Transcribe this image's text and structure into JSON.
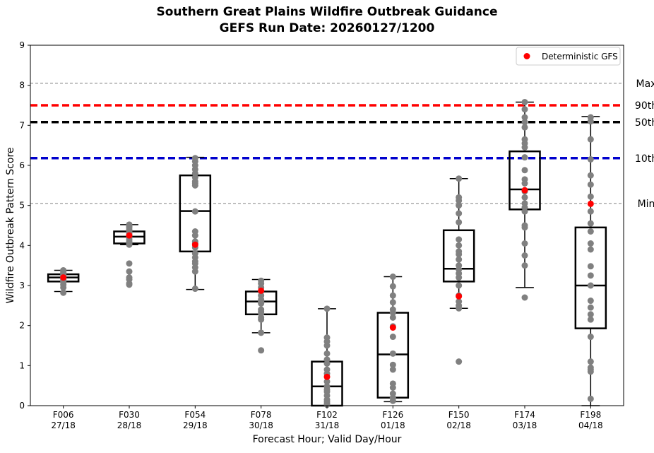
{
  "chart_data": {
    "type": "box",
    "title_line1": "Southern Great Plains Wildfire Outbreak Guidance",
    "title_line2": "GEFS Run Date: 20260127/1200",
    "xlabel": "Forecast Hour; Valid Day/Hour",
    "ylabel": "Wildfire Outbreak Pattern Score",
    "ylim": [
      0,
      9
    ],
    "yticks": [
      "0",
      "1",
      "2",
      "3",
      "4",
      "5",
      "6",
      "7",
      "8",
      "9"
    ],
    "legend": {
      "label": "Deterministic GFS",
      "location": "upper right"
    },
    "reference_lines": [
      {
        "label": "Max",
        "value": 8.05,
        "style": "thin-gray-dashed",
        "color": "#808080"
      },
      {
        "label": "90th",
        "value": 7.5,
        "style": "thick-dashed",
        "color": "#ff0000"
      },
      {
        "label": "50th",
        "value": 7.08,
        "style": "thick-dashed",
        "color": "#000000"
      },
      {
        "label": "10th",
        "value": 6.18,
        "style": "thick-dashed",
        "color": "#0000cd"
      },
      {
        "label": "Min",
        "value": 5.05,
        "style": "thin-gray-dashed",
        "color": "#808080"
      }
    ],
    "colors": {
      "members": "#808080",
      "deterministic": "#ff0000",
      "box": "#000000"
    },
    "categories": [
      {
        "hour": "F006",
        "valid": "27/18",
        "whisker_low": 2.85,
        "q1": 3.1,
        "median": 3.2,
        "q3": 3.28,
        "whisker_high": 3.38,
        "deterministic": 3.2,
        "members": [
          2.82,
          2.95,
          3.02,
          3.08,
          3.1,
          3.12,
          3.15,
          3.18,
          3.2,
          3.22,
          3.25,
          3.28,
          3.3,
          3.32,
          3.35,
          3.38
        ]
      },
      {
        "hour": "F030",
        "valid": "28/18",
        "whisker_low": 4.02,
        "q1": 4.05,
        "median": 4.22,
        "q3": 4.35,
        "whisker_high": 4.52,
        "deterministic": 4.25,
        "members": [
          3.02,
          3.05,
          3.15,
          3.2,
          3.35,
          3.55,
          4.02,
          4.05,
          4.1,
          4.15,
          4.2,
          4.25,
          4.3,
          4.35,
          4.4,
          4.45,
          4.48,
          4.52
        ]
      },
      {
        "hour": "F054",
        "valid": "29/18",
        "whisker_low": 2.9,
        "q1": 3.85,
        "median": 4.86,
        "q3": 5.75,
        "whisker_high": 6.2,
        "deterministic": 4.02,
        "members": [
          2.92,
          3.35,
          3.45,
          3.55,
          3.6,
          3.7,
          3.8,
          3.95,
          4.05,
          4.1,
          4.25,
          4.35,
          4.85,
          5.5,
          5.55,
          5.6,
          5.7,
          5.8,
          5.9,
          6.0,
          6.1,
          6.18
        ]
      },
      {
        "hour": "F078",
        "valid": "30/18",
        "whisker_low": 1.82,
        "q1": 2.28,
        "median": 2.6,
        "q3": 2.85,
        "whisker_high": 3.15,
        "deterministic": 2.87,
        "members": [
          1.38,
          1.82,
          2.15,
          2.2,
          2.3,
          2.35,
          2.4,
          2.55,
          2.6,
          2.65,
          2.75,
          2.85,
          2.95,
          3.05,
          3.12
        ]
      },
      {
        "hour": "F102",
        "valid": "31/18",
        "whisker_low": 0.0,
        "q1": 0.0,
        "median": 0.48,
        "q3": 1.1,
        "whisker_high": 2.42,
        "deterministic": 0.72,
        "members": [
          0.02,
          0.05,
          0.1,
          0.15,
          0.25,
          0.35,
          0.4,
          0.48,
          0.6,
          0.8,
          0.9,
          1.05,
          1.15,
          1.3,
          1.5,
          1.6,
          1.7,
          2.42
        ]
      },
      {
        "hour": "F126",
        "valid": "01/18",
        "whisker_low": 0.1,
        "q1": 0.2,
        "median": 1.28,
        "q3": 2.32,
        "whisker_high": 3.22,
        "deterministic": 1.95,
        "members": [
          0.12,
          0.2,
          0.3,
          0.45,
          0.55,
          0.9,
          1.02,
          1.3,
          1.72,
          1.98,
          2.2,
          2.32,
          2.4,
          2.58,
          2.75,
          2.98,
          3.22
        ]
      },
      {
        "hour": "F150",
        "valid": "02/18",
        "whisker_low": 2.43,
        "q1": 3.1,
        "median": 3.42,
        "q3": 4.38,
        "whisker_high": 5.67,
        "deterministic": 2.73,
        "members": [
          1.1,
          2.43,
          2.5,
          2.6,
          2.75,
          3.0,
          3.2,
          3.3,
          3.4,
          3.5,
          3.65,
          3.78,
          3.85,
          4.0,
          4.15,
          4.58,
          4.8,
          5.0,
          5.12,
          5.2,
          5.67
        ]
      },
      {
        "hour": "F174",
        "valid": "03/18",
        "whisker_low": 2.95,
        "q1": 4.9,
        "median": 5.4,
        "q3": 6.35,
        "whisker_high": 7.58,
        "deterministic": 5.38,
        "members": [
          2.7,
          3.5,
          3.75,
          4.05,
          4.45,
          4.5,
          4.85,
          4.95,
          5.05,
          5.2,
          5.35,
          5.55,
          5.65,
          5.88,
          6.2,
          6.45,
          6.55,
          6.65,
          6.95,
          7.08,
          7.2,
          7.4,
          7.58
        ]
      },
      {
        "hour": "F198",
        "valid": "04/18",
        "whisker_low": 0.0,
        "q1": 1.93,
        "median": 3.0,
        "q3": 4.45,
        "whisker_high": 7.22,
        "deterministic": 5.04,
        "members": [
          0.17,
          0.85,
          0.9,
          0.95,
          1.1,
          1.72,
          2.15,
          2.28,
          2.45,
          2.62,
          3.0,
          3.25,
          3.48,
          3.9,
          4.05,
          4.35,
          4.55,
          4.85,
          5.22,
          5.52,
          5.75,
          6.15,
          6.65,
          7.1,
          7.2
        ]
      }
    ]
  }
}
